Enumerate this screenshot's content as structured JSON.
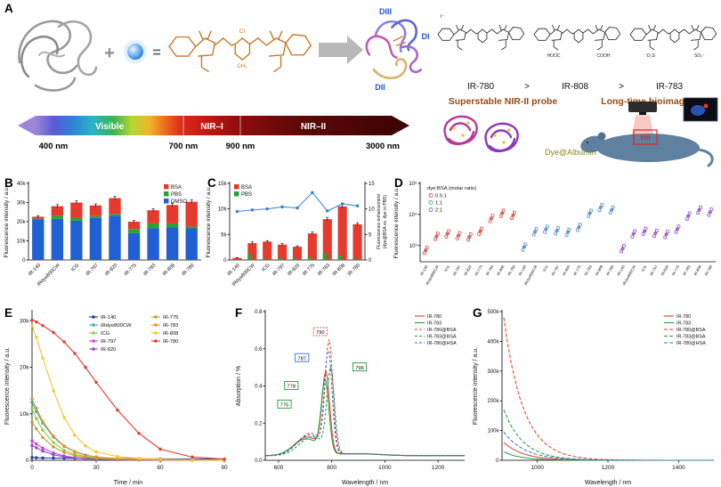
{
  "panel_labels": {
    "A": "A",
    "B": "B",
    "C": "C",
    "D": "D",
    "E": "E",
    "F": "F",
    "G": "G"
  },
  "panelA": {
    "plus": "+",
    "equals": "=",
    "cl": "Cl",
    "ch3": "CH₃",
    "domains": {
      "dIII": "DIII",
      "dI": "DI",
      "dII": "DII"
    },
    "spectrum": {
      "visible": "Visible",
      "nir1": "NIR–I",
      "nir2": "NIR–II",
      "t400": "400 nm",
      "t700": "700 nm",
      "t900": "900 nm",
      "t3000": "3000 nm"
    },
    "dye_ranking": {
      "d1": "IR-780",
      "gt1": ">",
      "d2": "IR-808",
      "gt2": ">",
      "d3": "IR-783"
    },
    "iodide": "I⁻",
    "cooh_l": "HOOC",
    "cooh_r": "COOH",
    "so3_l": "⁻O₃S",
    "so3_r": "SO₃⁻",
    "caption_probe": "Superstable NIR-II probe",
    "caption_imaging": "Long-time bioimaging",
    "albumin_label": "Dye@Albumin",
    "roi": "ROI"
  },
  "chart_data": [
    {
      "panel": "B",
      "type": "stacked_bar",
      "ylabel": "Fluorescence intensity / a.u.",
      "ylim": [
        0,
        40000
      ],
      "yticks": [
        0,
        10000,
        20000,
        30000,
        40000
      ],
      "ytick_labels": [
        "0",
        "10k",
        "20k",
        "30k",
        "40k"
      ],
      "categories": [
        "IR-140",
        "IRdye800CW",
        "ICG",
        "IR-797",
        "IR-820",
        "IR-775",
        "IR-783",
        "IR-808",
        "IR-780"
      ],
      "legend_order": [
        "BSA",
        "PBS",
        "DMSO"
      ],
      "series": [
        {
          "name": "DMSO",
          "color": "#2160d4",
          "values": [
            21200,
            21500,
            20500,
            22000,
            23000,
            14000,
            16500,
            17000,
            16500
          ]
        },
        {
          "name": "PBS",
          "color": "#27a335",
          "values": [
            400,
            1600,
            1400,
            900,
            1100,
            2200,
            2600,
            2100,
            900
          ]
        },
        {
          "name": "BSA",
          "color": "#e63a2e",
          "values": [
            1000,
            5000,
            8100,
            5600,
            8200,
            3800,
            6900,
            9600,
            13000
          ]
        }
      ],
      "errors": [
        600,
        800,
        900,
        800,
        900,
        700,
        800,
        900,
        1000
      ]
    },
    {
      "panel": "C",
      "type": "bar_line",
      "ylabel": "Fluorescence intensity / a.u.",
      "ylabel_right_1": "Fluorescence enhancement",
      "ylabel_right_2": "(dye@BSA vs. dye in PBS)",
      "ylim": [
        0,
        15000
      ],
      "yticks": [
        0,
        5000,
        10000,
        15000
      ],
      "ytick_labels": [
        "0",
        "5k",
        "10k",
        "15k"
      ],
      "right_ylim": [
        0,
        15
      ],
      "right_yticks": [
        0,
        5,
        10,
        15
      ],
      "categories": [
        "IR-140",
        "IRdye800CW",
        "ICG",
        "IR-797",
        "IR-820",
        "IR-775",
        "IR-783",
        "IR-808",
        "IR-780"
      ],
      "series": [
        {
          "name": "BSA",
          "color": "#e63a2e",
          "values": [
            400,
            3300,
            3600,
            3000,
            2600,
            5200,
            8000,
            10500,
            7000
          ]
        },
        {
          "name": "PBS",
          "color": "#27a335",
          "values": [
            150,
            1200,
            300,
            400,
            400,
            600,
            1300,
            1000,
            250
          ]
        }
      ],
      "errors": [
        80,
        250,
        200,
        200,
        180,
        300,
        350,
        400,
        300
      ],
      "line": {
        "name": "Enhancement",
        "color": "#2f7fd6",
        "values": [
          9.5,
          9.8,
          10.0,
          10.4,
          10.2,
          13.2,
          9.6,
          11.0,
          10.6
        ]
      }
    },
    {
      "panel": "D",
      "type": "scatter_groups",
      "ylabel": "Fluorescence intensity / a.u.",
      "yscale": "log",
      "ylim": [
        300,
        100000
      ],
      "yticks": [
        1000,
        10000,
        100000
      ],
      "ytick_labels": [
        "10³",
        "10⁴",
        "10⁵"
      ],
      "legend_title": "dye:BSA (molar ratio)",
      "categories": [
        "IR-140",
        "IRdye800CW",
        "ICG",
        "IR-797",
        "IR-820",
        "IR-775",
        "IR-783",
        "IR-808",
        "IR-780"
      ],
      "groups": [
        {
          "name": "0.5:1",
          "color": "#e05a50",
          "values": [
            700,
            2000,
            2400,
            2100,
            1900,
            2900,
            7500,
            11000,
            9500
          ]
        },
        {
          "name": "1:1",
          "color": "#5b9bd5",
          "values": [
            900,
            2800,
            3400,
            3000,
            2700,
            3900,
            11000,
            17000,
            14000
          ]
        },
        {
          "name": "2:1",
          "color": "#a05ad0",
          "values": [
            800,
            2400,
            2900,
            2500,
            2300,
            3400,
            9000,
            14000,
            12000
          ]
        }
      ]
    },
    {
      "panel": "E",
      "type": "line",
      "xlabel": "Time / min",
      "ylabel": "Fluorescence intensity / a.u.",
      "xlim": [
        0,
        90
      ],
      "xticks": [
        0,
        30,
        60,
        90
      ],
      "ylim": [
        0,
        32000
      ],
      "yticks": [
        0,
        10000,
        20000,
        30000
      ],
      "ytick_labels": [
        "0",
        "10k",
        "20k",
        "30k"
      ],
      "x": [
        0,
        2,
        5,
        10,
        15,
        20,
        25,
        30,
        40,
        50,
        60,
        75,
        90
      ],
      "series": [
        {
          "name": "IR-140",
          "color": "#1b3a9e",
          "values": [
            600,
            550,
            500,
            480,
            450,
            420,
            400,
            380,
            350,
            320,
            300,
            280,
            260
          ]
        },
        {
          "name": "IRdye800CW",
          "color": "#2ab5b5",
          "values": [
            12500,
            10500,
            8000,
            5000,
            3000,
            1800,
            1100,
            700,
            350,
            200,
            120,
            80,
            60
          ]
        },
        {
          "name": "ICG",
          "color": "#8fcf3a",
          "values": [
            11000,
            9000,
            6500,
            3800,
            2200,
            1300,
            800,
            500,
            250,
            150,
            90,
            60,
            40
          ]
        },
        {
          "name": "IR-797",
          "color": "#d43ad4",
          "values": [
            4200,
            3500,
            2600,
            1600,
            950,
            600,
            380,
            250,
            130,
            80,
            50,
            30,
            20
          ]
        },
        {
          "name": "IR-820",
          "color": "#8a4ad0",
          "values": [
            3200,
            2700,
            2000,
            1200,
            750,
            460,
            300,
            200,
            100,
            60,
            40,
            25,
            15
          ]
        },
        {
          "name": "IR-775",
          "color": "#b8a430",
          "values": [
            8200,
            6800,
            4900,
            2900,
            1700,
            1000,
            620,
            400,
            200,
            120,
            70,
            45,
            30
          ]
        },
        {
          "name": "IR-783",
          "color": "#f08a28",
          "values": [
            13200,
            11200,
            8400,
            5200,
            3100,
            1900,
            1150,
            720,
            360,
            210,
            130,
            85,
            55
          ]
        },
        {
          "name": "IR-808",
          "color": "#f2c928",
          "values": [
            29000,
            26500,
            22000,
            15000,
            9200,
            5400,
            3100,
            1800,
            800,
            400,
            220,
            120,
            70
          ]
        },
        {
          "name": "IR-780",
          "color": "#e8392f",
          "values": [
            30200,
            29800,
            29000,
            27500,
            25500,
            23000,
            20000,
            16800,
            10800,
            5800,
            2400,
            700,
            250
          ]
        }
      ],
      "legend_cols": [
        [
          "IR-140",
          "IRdye800CW",
          "ICG",
          "IR-797",
          "IR-820"
        ],
        [
          "IR-775",
          "IR-783",
          "IR-808",
          "IR-780"
        ]
      ]
    },
    {
      "panel": "F",
      "type": "spectra_peaks",
      "xlabel": "Wavelength / nm",
      "ylabel": "Absorption / %",
      "xlim": [
        550,
        1300
      ],
      "xticks": [
        600,
        800,
        1000,
        1200
      ],
      "ylim": [
        0,
        0.8
      ],
      "yticks": [
        0,
        0.2,
        0.4,
        0.6,
        0.8
      ],
      "ytick_labels": [
        "0.0",
        "0.2",
        "0.4",
        "0.6",
        "0.8"
      ],
      "series": [
        {
          "name": "IR-780",
          "color": "#e8392f",
          "dash": "",
          "peak": 778,
          "height": 0.42,
          "shoulder": 0.1
        },
        {
          "name": "IR-783",
          "color": "#1d9e3a",
          "dash": "",
          "peak": 775,
          "height": 0.38,
          "shoulder": 0.09
        },
        {
          "name": "IR-780@BSA",
          "color": "#e8392f",
          "dash": "3,2",
          "peak": 790,
          "height": 0.58,
          "shoulder": 0.12
        },
        {
          "name": "IR-783@BSA",
          "color": "#1d9e3a",
          "dash": "3,2",
          "peak": 796,
          "height": 0.44,
          "shoulder": 0.1
        },
        {
          "name": "IR-780@HSA",
          "color": "#3a6fd8",
          "dash": "3,2",
          "peak": 787,
          "height": 0.53,
          "shoulder": 0.11
        }
      ],
      "annotations": [
        {
          "label": "790",
          "color": "#e8392f",
          "x": 757,
          "y": 0.69,
          "dashed": true
        },
        {
          "label": "787",
          "color": "#3a6fd8",
          "x": 688,
          "y": 0.55
        },
        {
          "label": "796",
          "color": "#1d9e3a",
          "x": 905,
          "y": 0.5
        },
        {
          "label": "778",
          "color": "#1d9e3a",
          "x": 648,
          "y": 0.4
        },
        {
          "label": "775",
          "color": "#1d9e3a",
          "x": 622,
          "y": 0.3
        }
      ]
    },
    {
      "panel": "G",
      "type": "spectra_decay",
      "xlabel": "Wavelength / nm",
      "ylabel": "Fluorescence intensity / a.u.",
      "xlim": [
        900,
        1500
      ],
      "xticks": [
        1000,
        1200,
        1400
      ],
      "ylim": [
        0,
        500000
      ],
      "yticks": [
        0,
        100000,
        200000,
        300000,
        400000,
        500000
      ],
      "ytick_labels": [
        "0",
        "100k",
        "200k",
        "300k",
        "400k",
        "500k"
      ],
      "series": [
        {
          "name": "IR-780",
          "color": "#e8392f",
          "dash": "",
          "start": 60000,
          "tau": 55
        },
        {
          "name": "IR-783",
          "color": "#1d9e3a",
          "dash": "",
          "start": 28000,
          "tau": 50
        },
        {
          "name": "IR-780@BSA",
          "color": "#e8392f",
          "dash": "4,2",
          "start": 480000,
          "tau": 55
        },
        {
          "name": "IR-783@BSA",
          "color": "#1d9e3a",
          "dash": "4,2",
          "start": 170000,
          "tau": 55
        },
        {
          "name": "IR-780@HSA",
          "color": "#3a6fd8",
          "dash": "4,2",
          "start": 95000,
          "tau": 60
        }
      ]
    }
  ]
}
